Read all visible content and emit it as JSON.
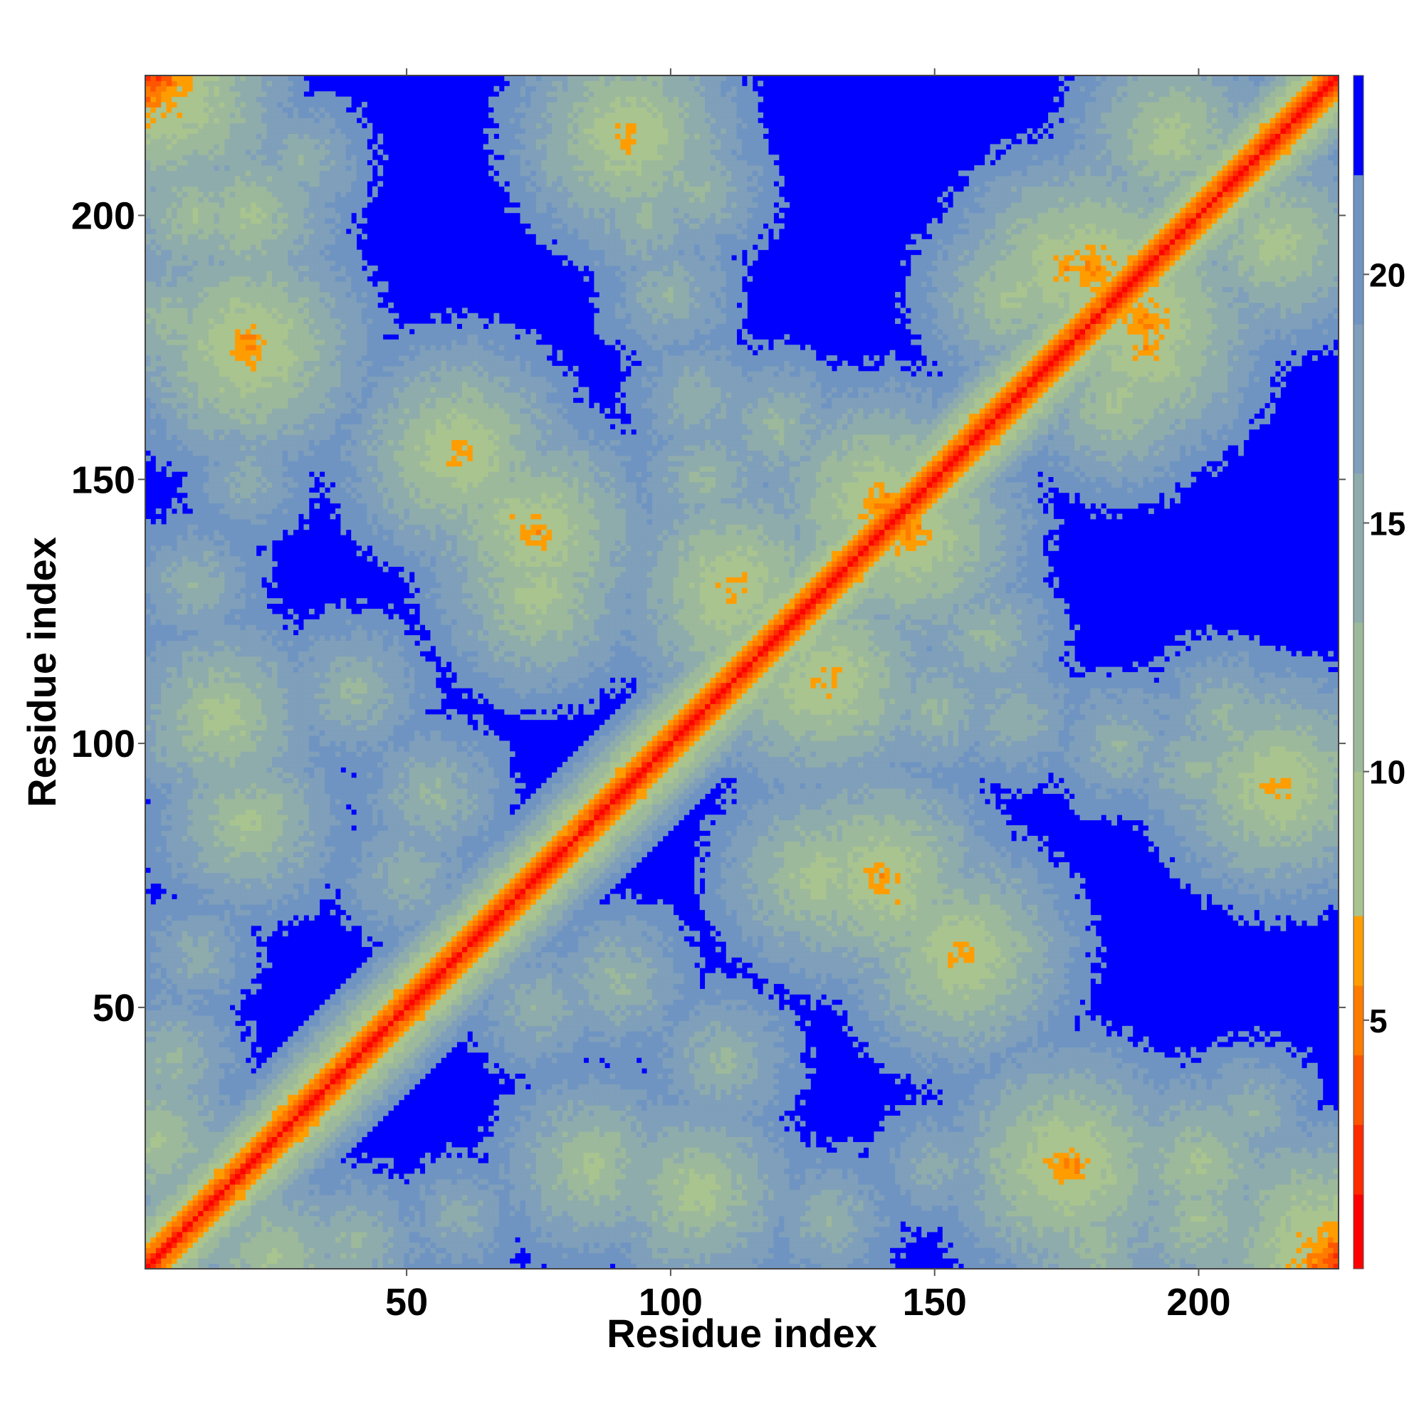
{
  "chart_data": {
    "type": "heatmap",
    "title": "",
    "xlabel": "Residue index",
    "ylabel": "Residue index",
    "n_residues": 226,
    "xlim": [
      1,
      226
    ],
    "ylim": [
      1,
      226
    ],
    "x_ticks": [
      50,
      100,
      150,
      200
    ],
    "y_ticks": [
      50,
      100,
      150,
      200
    ],
    "colorbar": {
      "ticks": [
        5,
        10,
        15,
        20
      ],
      "range": [
        0,
        24
      ],
      "levels": [
        {
          "upto": 1.5,
          "color": "#ff0000"
        },
        {
          "upto": 2.9,
          "color": "#ff2a00"
        },
        {
          "upto": 4.3,
          "color": "#ff5500"
        },
        {
          "upto": 5.7,
          "color": "#ff7b00"
        },
        {
          "upto": 7.1,
          "color": "#ff9d00"
        },
        {
          "upto": 10.0,
          "color": "#a9c48f"
        },
        {
          "upto": 13.0,
          "color": "#9db99b"
        },
        {
          "upto": 16.0,
          "color": "#8facac"
        },
        {
          "upto": 19.0,
          "color": "#7f9fba"
        },
        {
          "upto": 22.0,
          "color": "#6f94c2"
        },
        {
          "upto": 24.0,
          "color": "#0000ff"
        }
      ]
    },
    "contact_pairs": [
      [
        1,
        226,
        2.5
      ],
      [
        2,
        25,
        9
      ],
      [
        5,
        40,
        12
      ],
      [
        10,
        60,
        14
      ],
      [
        15,
        105,
        8
      ],
      [
        10,
        130,
        13
      ],
      [
        5,
        180,
        11
      ],
      [
        10,
        200,
        10
      ],
      [
        5,
        220,
        12
      ],
      [
        20,
        150,
        14
      ],
      [
        50,
        75,
        13
      ],
      [
        55,
        90,
        12
      ],
      [
        60,
        155,
        6
      ],
      [
        70,
        143,
        8
      ],
      [
        65,
        130,
        13
      ],
      [
        85,
        20,
        9
      ],
      [
        90,
        215,
        12
      ],
      [
        95,
        200,
        12
      ],
      [
        100,
        185,
        13
      ],
      [
        105,
        165,
        13
      ],
      [
        112,
        130,
        6
      ],
      [
        110,
        40,
        12
      ],
      [
        125,
        110,
        8
      ],
      [
        128,
        75,
        8
      ],
      [
        140,
        75,
        6
      ],
      [
        140,
        145,
        5
      ],
      [
        150,
        107,
        12
      ],
      [
        155,
        58,
        7
      ],
      [
        160,
        120,
        12
      ],
      [
        175,
        20,
        5
      ],
      [
        180,
        190,
        5
      ],
      [
        185,
        165,
        9
      ],
      [
        195,
        215,
        8
      ],
      [
        200,
        20,
        9
      ],
      [
        205,
        105,
        12
      ],
      [
        210,
        30,
        13
      ],
      [
        215,
        92,
        6
      ],
      [
        220,
        10,
        8
      ],
      [
        175,
        190,
        6
      ]
    ]
  }
}
